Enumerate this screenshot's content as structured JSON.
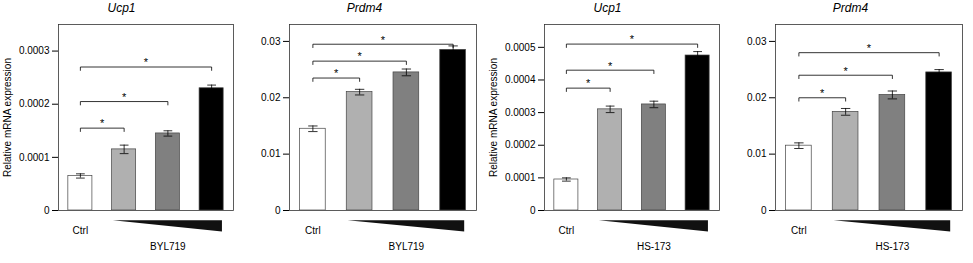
{
  "chart_data": [
    {
      "type": "bar",
      "title": "Ucp1",
      "xlabel": "BYL719",
      "ylabel": "Relative mRNA expression",
      "categories": [
        "Ctrl",
        null,
        null,
        null
      ],
      "values": [
        6.5e-05,
        0.000115,
        0.000145,
        0.00023
      ],
      "errors": [
        4e-06,
        8e-06,
        5e-06,
        6e-06
      ],
      "colors": [
        "#ffffff",
        "#b0b0b0",
        "#808080",
        "#000000"
      ],
      "ylim": [
        0,
        0.00035
      ],
      "yticks": [
        0,
        0.0001,
        0.0002,
        0.0003
      ],
      "grid": false,
      "significance": [
        {
          "from": 0,
          "to": 1,
          "value": 0.000155,
          "label": "*"
        },
        {
          "from": 0,
          "to": 2,
          "value": 0.000205,
          "label": "*"
        },
        {
          "from": 0,
          "to": 3,
          "value": 0.00027,
          "label": "*"
        }
      ]
    },
    {
      "type": "bar",
      "title": "Prdm4",
      "xlabel": "BYL719",
      "categories": [
        "Ctrl",
        null,
        null,
        null
      ],
      "values": [
        0.0145,
        0.021,
        0.0245,
        0.0285
      ],
      "errors": [
        0.0005,
        0.0005,
        0.0006,
        0.0007
      ],
      "colors": [
        "#ffffff",
        "#b0b0b0",
        "#808080",
        "#000000"
      ],
      "ylim": [
        0,
        0.033
      ],
      "yticks": [
        0,
        0.01,
        0.02,
        0.03
      ],
      "grid": false,
      "significance": [
        {
          "from": 0,
          "to": 1,
          "value": 0.0235,
          "label": "*"
        },
        {
          "from": 0,
          "to": 2,
          "value": 0.0265,
          "label": "*"
        },
        {
          "from": 0,
          "to": 3,
          "value": 0.0295,
          "label": "*"
        }
      ]
    },
    {
      "type": "bar",
      "title": "Ucp1",
      "xlabel": "HS-173",
      "ylabel": "Relative mRNA expression",
      "categories": [
        "Ctrl",
        null,
        null,
        null
      ],
      "values": [
        9.5e-05,
        0.00031,
        0.000325,
        0.000475
      ],
      "errors": [
        5e-06,
        1e-05,
        1e-05,
        1.2e-05
      ],
      "colors": [
        "#ffffff",
        "#b0b0b0",
        "#808080",
        "#000000"
      ],
      "ylim": [
        0,
        0.00057
      ],
      "yticks": [
        0,
        0.0001,
        0.0002,
        0.0003,
        0.0004,
        0.0005
      ],
      "grid": false,
      "significance": [
        {
          "from": 0,
          "to": 1,
          "value": 0.000375,
          "label": "*"
        },
        {
          "from": 0,
          "to": 2,
          "value": 0.00043,
          "label": "*"
        },
        {
          "from": 0,
          "to": 3,
          "value": 0.00051,
          "label": "*"
        }
      ]
    },
    {
      "type": "bar",
      "title": "Prdm4",
      "xlabel": "HS-173",
      "categories": [
        "Ctrl",
        null,
        null,
        null
      ],
      "values": [
        0.0115,
        0.0175,
        0.0205,
        0.0245
      ],
      "errors": [
        0.0005,
        0.0006,
        0.0007,
        0.0005
      ],
      "colors": [
        "#ffffff",
        "#b0b0b0",
        "#808080",
        "#000000"
      ],
      "ylim": [
        0,
        0.033
      ],
      "yticks": [
        0,
        0.01,
        0.02,
        0.03
      ],
      "grid": false,
      "significance": [
        {
          "from": 0,
          "to": 1,
          "value": 0.02,
          "label": "*"
        },
        {
          "from": 0,
          "to": 2,
          "value": 0.024,
          "label": "*"
        },
        {
          "from": 0,
          "to": 3,
          "value": 0.028,
          "label": "*"
        }
      ]
    }
  ]
}
